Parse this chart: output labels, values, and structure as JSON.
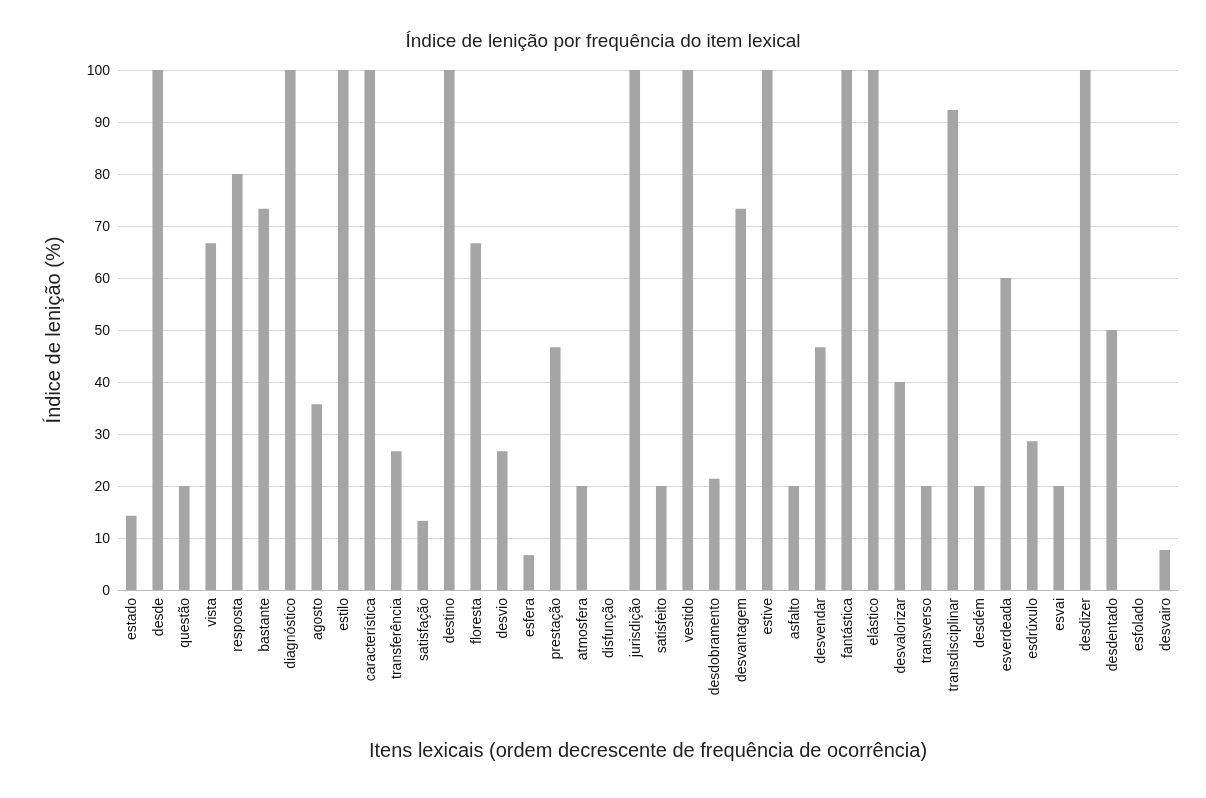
{
  "chart_data": {
    "type": "bar",
    "title": "Índice de lenição por frequência do item lexical",
    "xlabel": "Itens lexicais (ordem decrescente de frequência de ocorrência)",
    "ylabel": "Índice de lenição (%)",
    "categories": [
      "estado",
      "desde",
      "questão",
      "vista",
      "resposta",
      "bastante",
      "diagnóstico",
      "agosto",
      "estilo",
      "característica",
      "transferência",
      "satisfação",
      "destino",
      "floresta",
      "desvio",
      "esfera",
      "prestação",
      "atmosfera",
      "disfunção",
      "jurisdição",
      "satisfeito",
      "vestido",
      "desdobramento",
      "desvantagem",
      "estive",
      "asfalto",
      "desvendar",
      "fantástica",
      "elástico",
      "desvalorizar",
      "transverso",
      "transdisciplinar",
      "desdém",
      "esverdeada",
      "esdrúxulo",
      "esvai",
      "desdizer",
      "desdentado",
      "esfolado",
      "desvairo"
    ],
    "values": [
      14.3,
      100,
      20,
      66.7,
      80,
      73.3,
      100,
      35.7,
      100,
      100,
      26.7,
      13.3,
      100,
      66.7,
      26.7,
      6.7,
      46.7,
      20,
      0,
      100,
      20,
      100,
      21.4,
      73.3,
      100,
      20,
      46.7,
      100,
      100,
      40,
      20,
      92.3,
      20,
      60,
      28.6,
      20,
      100,
      50,
      0,
      7.7
    ],
    "color": "#a5a5a5",
    "ylim": [
      0,
      100
    ],
    "yticks": [
      0,
      10,
      20,
      30,
      40,
      50,
      60,
      70,
      80,
      90,
      100
    ],
    "grid": "y"
  }
}
